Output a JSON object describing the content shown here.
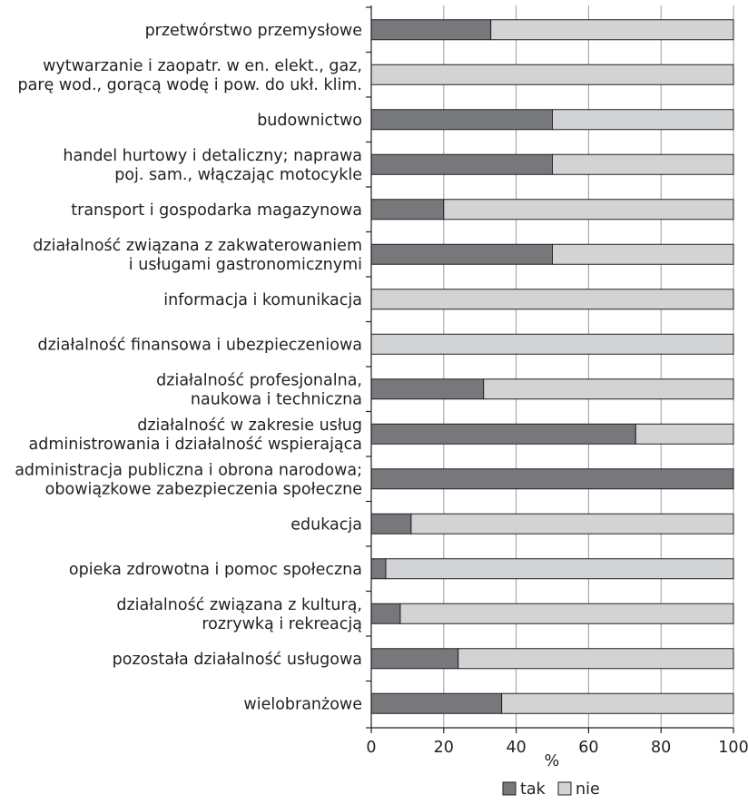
{
  "chart_data": {
    "type": "bar",
    "stacked": true,
    "orientation": "horizontal",
    "categories": [
      [
        "przetwórstwo przemysłowe"
      ],
      [
        "wytwarzanie i zaopatr. w en. elekt., gaz,",
        "parę wod., gorącą wodę i pow. do ukł. klim."
      ],
      [
        "budownictwo"
      ],
      [
        "handel hurtowy i detaliczny; naprawa",
        "poj. sam., włączając motocykle"
      ],
      [
        "transport i gospodarka magazynowa"
      ],
      [
        "działalność związana z zakwaterowaniem",
        "i usługami gastronomicznymi"
      ],
      [
        "informacja i komunikacja"
      ],
      [
        "działalność finansowa i ubezpieczeniowa"
      ],
      [
        "działalność profesjonalna,",
        "naukowa i techniczna"
      ],
      [
        "działalność w zakresie usług",
        "administrowania i działalność wspierająca"
      ],
      [
        "administracja publiczna i obrona narodowa;",
        "obowiązkowe zabezpieczenia społeczne"
      ],
      [
        "edukacja"
      ],
      [
        "opieka zdrowotna i pomoc społeczna"
      ],
      [
        "działalność związana z kulturą,",
        "rozrywką i rekreacją"
      ],
      [
        "pozostała działalność usługowa"
      ],
      [
        "wielobranżowe"
      ]
    ],
    "series": [
      {
        "name": "tak",
        "color": "#77787b",
        "values": [
          33,
          0,
          50,
          50,
          20,
          50,
          0,
          0,
          31,
          73,
          100,
          11,
          4,
          8,
          24,
          36
        ]
      },
      {
        "name": "nie",
        "color": "#d1d3d4",
        "values": [
          67,
          100,
          50,
          50,
          80,
          50,
          100,
          100,
          69,
          27,
          0,
          89,
          96,
          92,
          76,
          64
        ]
      }
    ],
    "xlabel": "%",
    "xlim": [
      0,
      100
    ],
    "xticks": [
      "0",
      "20",
      "40",
      "60",
      "80",
      "100"
    ],
    "grid": true,
    "legend_position": "bottom"
  }
}
